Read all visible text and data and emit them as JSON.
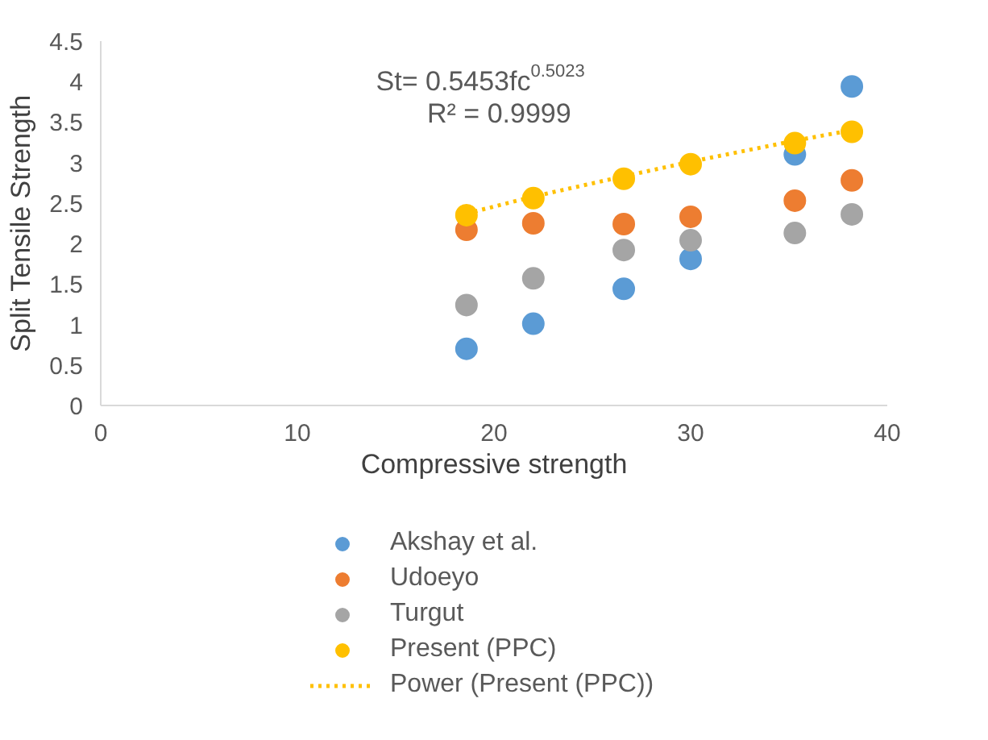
{
  "chart_data": {
    "type": "scatter",
    "xlabel": "Compressive strength",
    "ylabel": "Split Tensile Strength",
    "x": [
      18.6,
      22.0,
      26.6,
      30.0,
      35.3,
      38.2
    ],
    "series": [
      {
        "name": "Akshay et al.",
        "color": "#5b9bd5",
        "values": [
          0.7,
          1.01,
          1.44,
          1.81,
          3.1,
          3.94
        ]
      },
      {
        "name": "Udoeyo",
        "color": "#ed7d31",
        "values": [
          2.17,
          2.25,
          2.24,
          2.33,
          2.53,
          2.78
        ]
      },
      {
        "name": "Turgut",
        "color": "#a5a5a5",
        "values": [
          1.24,
          1.57,
          1.92,
          2.04,
          2.13,
          2.36
        ]
      },
      {
        "name": "Present (PPC)",
        "color": "#ffc000",
        "values": [
          2.35,
          2.56,
          2.8,
          2.98,
          3.24,
          3.38
        ]
      },
      {
        "name": "Power (Present (PPC))",
        "type": "line",
        "line_style": "dotted",
        "marker": "none",
        "color": "#ffc000",
        "x": [
          18.6,
          22.0,
          26.6,
          30.0,
          35.3,
          38.2
        ],
        "values": [
          2.37,
          2.58,
          2.83,
          3.01,
          3.27,
          3.4
        ]
      }
    ],
    "annotations": [
      "St= 0.5453fc$^{0.5023}$",
      "R² = 0.9999"
    ],
    "xlim": [
      0,
      40
    ],
    "xticks": [
      0,
      10,
      20,
      30,
      40
    ],
    "ylim": [
      0,
      4.5
    ],
    "yticks": [
      0,
      0.5,
      1,
      1.5,
      2,
      2.5,
      3,
      3.5,
      4,
      4.5
    ],
    "marker": "circle",
    "grid": false,
    "legend": "bottom"
  }
}
